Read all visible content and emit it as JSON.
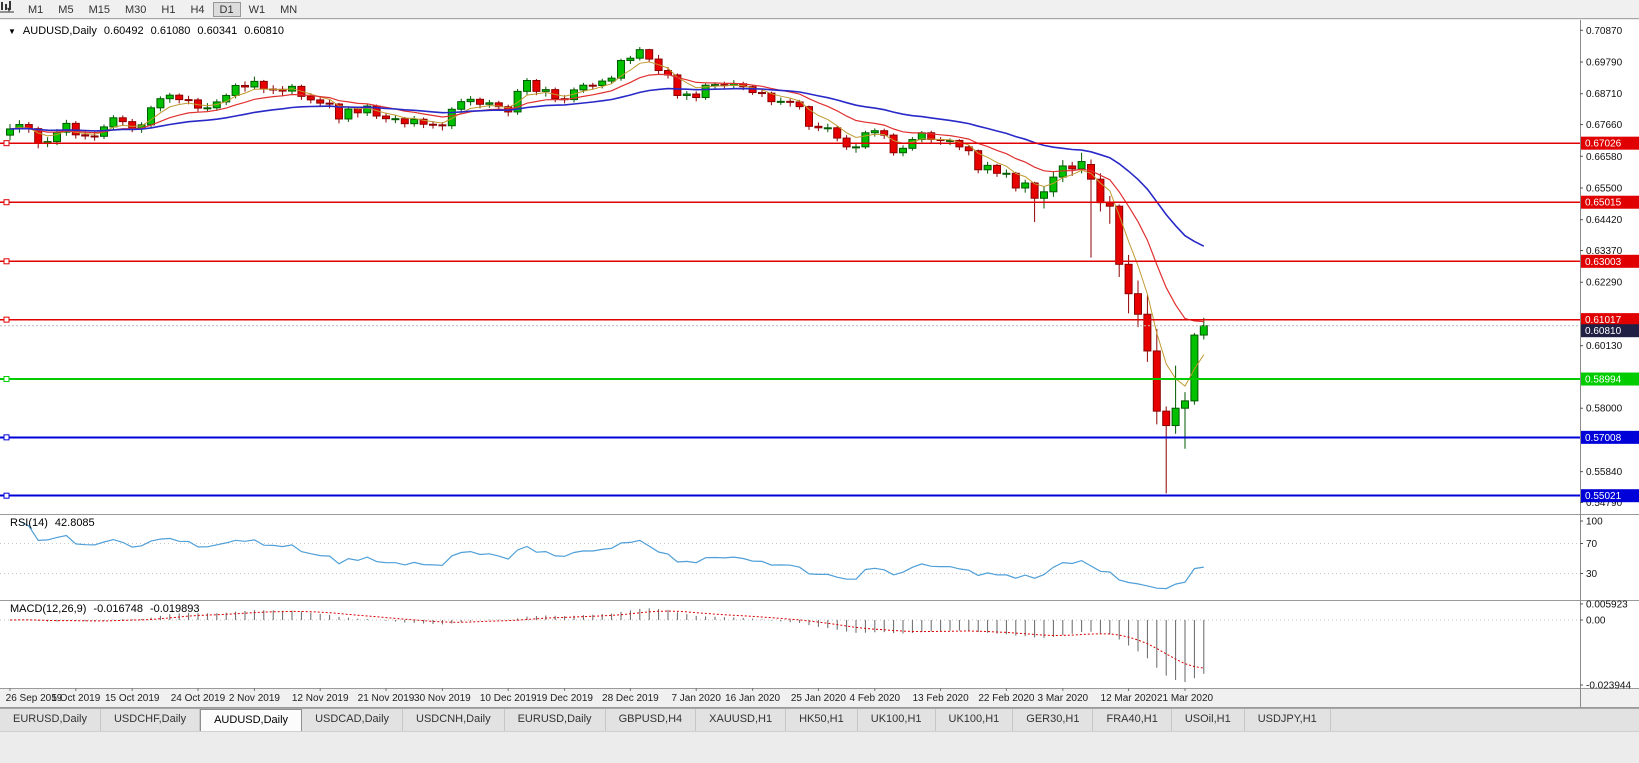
{
  "toolbar": {
    "timeframes": [
      {
        "label": "M1",
        "active": false
      },
      {
        "label": "M5",
        "active": false
      },
      {
        "label": "M15",
        "active": false
      },
      {
        "label": "M30",
        "active": false
      },
      {
        "label": "H1",
        "active": false
      },
      {
        "label": "H4",
        "active": false
      },
      {
        "label": "D1",
        "active": true
      },
      {
        "label": "W1",
        "active": false
      },
      {
        "label": "MN",
        "active": false
      }
    ]
  },
  "chart": {
    "symbol": "AUDUSD,Daily",
    "open": "0.60492",
    "high": "0.61080",
    "low": "0.60341",
    "close": "0.60810"
  },
  "price_axis": {
    "ticks": [
      "0.70870",
      "0.69790",
      "0.68710",
      "0.67660",
      "0.66580",
      "0.65500",
      "0.64420",
      "0.63370",
      "0.62290",
      "0.60130",
      "0.58000",
      "0.55840",
      "0.54790"
    ]
  },
  "lines": {
    "horizontal": [
      {
        "label": "0.67026",
        "price": 0.67026,
        "color": "#e00000",
        "width": 1.4
      },
      {
        "label": "0.65015",
        "price": 0.65015,
        "color": "#e00000",
        "width": 1.4
      },
      {
        "label": "0.63003",
        "price": 0.63003,
        "color": "#e00000",
        "width": 1.4
      },
      {
        "label": "0.61017",
        "price": 0.61017,
        "color": "#e00000",
        "width": 1.4
      },
      {
        "label": "0.58994",
        "price": 0.58994,
        "color": "#00cc00",
        "width": 2
      },
      {
        "label": "0.57008",
        "price": 0.57008,
        "color": "#0000d8",
        "width": 2
      },
      {
        "label": "0.55021",
        "price": 0.55021,
        "color": "#0000d8",
        "width": 2
      }
    ],
    "current": {
      "label": "0.60810",
      "price": 0.6081,
      "color": "#202044"
    }
  },
  "rsi": {
    "name": "RSI(14)",
    "value": "42.8085",
    "color": "#4f9fd8",
    "levels": [
      {
        "label": "100",
        "v": 100,
        "line": false
      },
      {
        "label": "70",
        "v": 70,
        "line": true
      },
      {
        "label": "30",
        "v": 30,
        "line": true
      }
    ]
  },
  "macd": {
    "name": "MACD(12,26,9)",
    "value_main": "-0.016748",
    "value_signal": "-0.019893",
    "axis": [
      {
        "label": "0.005923",
        "v": 0.005923
      },
      {
        "label": "0.00",
        "v": 0
      },
      {
        "label": "-0.023944",
        "v": -0.023944
      }
    ]
  },
  "date_axis": [
    "26 Sep 2019",
    "5 Oct 2019",
    "15 Oct 2019",
    "24 Oct 2019",
    "2 Nov 2019",
    "12 Nov 2019",
    "21 Nov 2019",
    "30 Nov 2019",
    "10 Dec 2019",
    "19 Dec 2019",
    "28 Dec 2019",
    "7 Jan 2020",
    "16 Jan 2020",
    "25 Jan 2020",
    "4 Feb 2020",
    "13 Feb 2020",
    "22 Feb 2020",
    "3 Mar 2020",
    "12 Mar 2020",
    "21 Mar 2020"
  ],
  "tabs": [
    {
      "label": "EURUSD,Daily",
      "active": false
    },
    {
      "label": "USDCHF,Daily",
      "active": false
    },
    {
      "label": "AUDUSD,Daily",
      "active": true
    },
    {
      "label": "USDCAD,Daily",
      "active": false
    },
    {
      "label": "USDCNH,Daily",
      "active": false
    },
    {
      "label": "EURUSD,Daily",
      "active": false
    },
    {
      "label": "GBPUSD,H4",
      "active": false
    },
    {
      "label": "XAUUSD,H1",
      "active": false
    },
    {
      "label": "HK50,H1",
      "active": false
    },
    {
      "label": "UK100,H1",
      "active": false
    },
    {
      "label": "UK100,H1",
      "active": false
    },
    {
      "label": "GER30,H1",
      "active": false
    },
    {
      "label": "FRA40,H1",
      "active": false
    },
    {
      "label": "USOil,H1",
      "active": false
    },
    {
      "label": "USDJPY,H1",
      "active": false
    }
  ],
  "chart_data": {
    "type": "candlestick",
    "symbol": "AUDUSD",
    "timeframe": "Daily",
    "ylim": [
      0.545,
      0.7105
    ],
    "colors": {
      "up": "#00c000",
      "up_stroke": "#005a00",
      "down": "#e80000",
      "down_stroke": "#8c0000",
      "rsi": "#4f9fd8",
      "macd_hist": "#666666",
      "macd_signal": "#dd0000"
    },
    "ma": [
      {
        "period": 5,
        "color": "#c09a30",
        "width": 1
      },
      {
        "period": 13,
        "color": "#e03030",
        "width": 1.2
      },
      {
        "period": 34,
        "color": "#2929c8",
        "width": 1.6
      }
    ],
    "candles": [
      [
        0.673,
        0.6768,
        0.6712,
        0.6751
      ],
      [
        0.6751,
        0.6781,
        0.6738,
        0.6766
      ],
      [
        0.6766,
        0.6775,
        0.6738,
        0.6752
      ],
      [
        0.6752,
        0.6759,
        0.6685,
        0.6702
      ],
      [
        0.6702,
        0.6723,
        0.6689,
        0.6708
      ],
      [
        0.6708,
        0.6751,
        0.6696,
        0.674
      ],
      [
        0.674,
        0.6782,
        0.6728,
        0.677
      ],
      [
        0.677,
        0.6778,
        0.6718,
        0.6731
      ],
      [
        0.6731,
        0.6748,
        0.6715,
        0.6727
      ],
      [
        0.6727,
        0.6742,
        0.6711,
        0.6726
      ],
      [
        0.6726,
        0.6766,
        0.6717,
        0.6758
      ],
      [
        0.6758,
        0.6798,
        0.6746,
        0.6789
      ],
      [
        0.6789,
        0.6797,
        0.6761,
        0.6776
      ],
      [
        0.6776,
        0.6785,
        0.674,
        0.6752
      ],
      [
        0.6752,
        0.6774,
        0.6738,
        0.6765
      ],
      [
        0.6765,
        0.683,
        0.6753,
        0.6823
      ],
      [
        0.6823,
        0.6862,
        0.6811,
        0.6854
      ],
      [
        0.6854,
        0.6874,
        0.684,
        0.6866
      ],
      [
        0.6866,
        0.6872,
        0.6838,
        0.6851
      ],
      [
        0.6851,
        0.6864,
        0.6835,
        0.685
      ],
      [
        0.685,
        0.6857,
        0.681,
        0.6822
      ],
      [
        0.6822,
        0.6839,
        0.6809,
        0.6823
      ],
      [
        0.6823,
        0.6852,
        0.6813,
        0.6843
      ],
      [
        0.6843,
        0.6872,
        0.6832,
        0.6865
      ],
      [
        0.6865,
        0.6906,
        0.6855,
        0.6899
      ],
      [
        0.6899,
        0.6913,
        0.6878,
        0.6894
      ],
      [
        0.6894,
        0.6929,
        0.6885,
        0.6913
      ],
      [
        0.6913,
        0.6918,
        0.6873,
        0.6887
      ],
      [
        0.6887,
        0.69,
        0.687,
        0.6886
      ],
      [
        0.6886,
        0.6897,
        0.6862,
        0.688
      ],
      [
        0.688,
        0.6904,
        0.6866,
        0.6896
      ],
      [
        0.6896,
        0.6902,
        0.685,
        0.6862
      ],
      [
        0.6862,
        0.6873,
        0.6838,
        0.685
      ],
      [
        0.685,
        0.6861,
        0.6826,
        0.6839
      ],
      [
        0.6839,
        0.685,
        0.6821,
        0.6836
      ],
      [
        0.6836,
        0.684,
        0.677,
        0.6785
      ],
      [
        0.6785,
        0.6826,
        0.6775,
        0.6819
      ],
      [
        0.6819,
        0.6827,
        0.679,
        0.6806
      ],
      [
        0.6806,
        0.6837,
        0.6795,
        0.6829
      ],
      [
        0.6829,
        0.6834,
        0.6785,
        0.6795
      ],
      [
        0.6795,
        0.6806,
        0.6773,
        0.6786
      ],
      [
        0.6786,
        0.6799,
        0.6771,
        0.6786
      ],
      [
        0.6786,
        0.6792,
        0.6756,
        0.6769
      ],
      [
        0.6769,
        0.6795,
        0.6759,
        0.6784
      ],
      [
        0.6784,
        0.679,
        0.6754,
        0.6767
      ],
      [
        0.6767,
        0.6778,
        0.6752,
        0.6765
      ],
      [
        0.6765,
        0.6774,
        0.6746,
        0.6762
      ],
      [
        0.6762,
        0.6825,
        0.6751,
        0.6818
      ],
      [
        0.6818,
        0.6854,
        0.6806,
        0.6844
      ],
      [
        0.6844,
        0.6863,
        0.6831,
        0.6852
      ],
      [
        0.6852,
        0.6858,
        0.6821,
        0.6835
      ],
      [
        0.6835,
        0.685,
        0.6823,
        0.684
      ],
      [
        0.684,
        0.6847,
        0.6813,
        0.6827
      ],
      [
        0.6827,
        0.6834,
        0.6794,
        0.6809
      ],
      [
        0.6809,
        0.6887,
        0.6799,
        0.6879
      ],
      [
        0.6879,
        0.6924,
        0.6868,
        0.6916
      ],
      [
        0.6916,
        0.6921,
        0.6866,
        0.6879
      ],
      [
        0.6879,
        0.6895,
        0.6861,
        0.6885
      ],
      [
        0.6885,
        0.6892,
        0.6842,
        0.6854
      ],
      [
        0.6854,
        0.6866,
        0.6838,
        0.6851
      ],
      [
        0.6851,
        0.6892,
        0.6841,
        0.6884
      ],
      [
        0.6884,
        0.6908,
        0.6874,
        0.69
      ],
      [
        0.69,
        0.6908,
        0.6885,
        0.6899
      ],
      [
        0.6899,
        0.6922,
        0.6889,
        0.6914
      ],
      [
        0.6914,
        0.6932,
        0.6904,
        0.6924
      ],
      [
        0.6924,
        0.699,
        0.6915,
        0.6984
      ],
      [
        0.6984,
        0.7,
        0.6972,
        0.6992
      ],
      [
        0.6992,
        0.703,
        0.6984,
        0.7021
      ],
      [
        0.7021,
        0.7024,
        0.698,
        0.6989
      ],
      [
        0.6989,
        0.7003,
        0.6938,
        0.695
      ],
      [
        0.695,
        0.6962,
        0.6923,
        0.6935
      ],
      [
        0.6935,
        0.694,
        0.6854,
        0.6865
      ],
      [
        0.6865,
        0.688,
        0.685,
        0.687
      ],
      [
        0.687,
        0.6879,
        0.6845,
        0.6858
      ],
      [
        0.6858,
        0.6906,
        0.685,
        0.69
      ],
      [
        0.69,
        0.691,
        0.6887,
        0.6902
      ],
      [
        0.6902,
        0.6912,
        0.6886,
        0.6899
      ],
      [
        0.6899,
        0.6917,
        0.6888,
        0.6905
      ],
      [
        0.6905,
        0.6912,
        0.6883,
        0.6895
      ],
      [
        0.6895,
        0.6902,
        0.6867,
        0.6875
      ],
      [
        0.6875,
        0.6885,
        0.686,
        0.6873
      ],
      [
        0.6873,
        0.6878,
        0.6832,
        0.6844
      ],
      [
        0.6844,
        0.6858,
        0.6833,
        0.6845
      ],
      [
        0.6845,
        0.6854,
        0.6827,
        0.6843
      ],
      [
        0.6843,
        0.685,
        0.6817,
        0.6827
      ],
      [
        0.6827,
        0.6831,
        0.6748,
        0.676
      ],
      [
        0.676,
        0.6773,
        0.6744,
        0.6755
      ],
      [
        0.6755,
        0.6769,
        0.674,
        0.6755
      ],
      [
        0.6755,
        0.6761,
        0.6709,
        0.672
      ],
      [
        0.672,
        0.673,
        0.668,
        0.669
      ],
      [
        0.669,
        0.6704,
        0.667,
        0.669
      ],
      [
        0.669,
        0.6745,
        0.6683,
        0.6738
      ],
      [
        0.6738,
        0.6753,
        0.6725,
        0.6745
      ],
      [
        0.6745,
        0.6752,
        0.6717,
        0.673
      ],
      [
        0.673,
        0.6736,
        0.666,
        0.667
      ],
      [
        0.667,
        0.6695,
        0.6658,
        0.6685
      ],
      [
        0.6685,
        0.6723,
        0.6677,
        0.6715
      ],
      [
        0.6715,
        0.6744,
        0.6706,
        0.6738
      ],
      [
        0.6738,
        0.6745,
        0.6703,
        0.6715
      ],
      [
        0.6715,
        0.6723,
        0.6697,
        0.6712
      ],
      [
        0.6712,
        0.6719,
        0.6696,
        0.6712
      ],
      [
        0.6712,
        0.6716,
        0.6679,
        0.669
      ],
      [
        0.669,
        0.6698,
        0.6661,
        0.6677
      ],
      [
        0.6677,
        0.6681,
        0.66,
        0.6612
      ],
      [
        0.6612,
        0.6639,
        0.6599,
        0.6627
      ],
      [
        0.6627,
        0.6632,
        0.6588,
        0.66
      ],
      [
        0.66,
        0.6613,
        0.6585,
        0.66
      ],
      [
        0.66,
        0.6605,
        0.6538,
        0.655
      ],
      [
        0.655,
        0.6578,
        0.6534,
        0.6567
      ],
      [
        0.6567,
        0.6571,
        0.6434,
        0.6515
      ],
      [
        0.6515,
        0.6556,
        0.648,
        0.6537
      ],
      [
        0.6537,
        0.6605,
        0.652,
        0.6587
      ],
      [
        0.6587,
        0.6645,
        0.657,
        0.6625
      ],
      [
        0.6625,
        0.6639,
        0.6591,
        0.6615
      ],
      [
        0.6615,
        0.667,
        0.66,
        0.664
      ],
      [
        0.663,
        0.6647,
        0.6313,
        0.658
      ],
      [
        0.658,
        0.66,
        0.647,
        0.65
      ],
      [
        0.65,
        0.6523,
        0.6428,
        0.6488
      ],
      [
        0.6488,
        0.6494,
        0.6247,
        0.629
      ],
      [
        0.629,
        0.6322,
        0.6123,
        0.619
      ],
      [
        0.619,
        0.6235,
        0.6076,
        0.612
      ],
      [
        0.612,
        0.6185,
        0.5958,
        0.5995
      ],
      [
        0.5995,
        0.607,
        0.5745,
        0.579
      ],
      [
        0.579,
        0.5806,
        0.551,
        0.5741
      ],
      [
        0.5741,
        0.5945,
        0.5713,
        0.58
      ],
      [
        0.58,
        0.5855,
        0.5662,
        0.5825
      ],
      [
        0.5825,
        0.6056,
        0.5812,
        0.6049
      ],
      [
        0.60492,
        0.6108,
        0.60341,
        0.6081
      ]
    ]
  }
}
